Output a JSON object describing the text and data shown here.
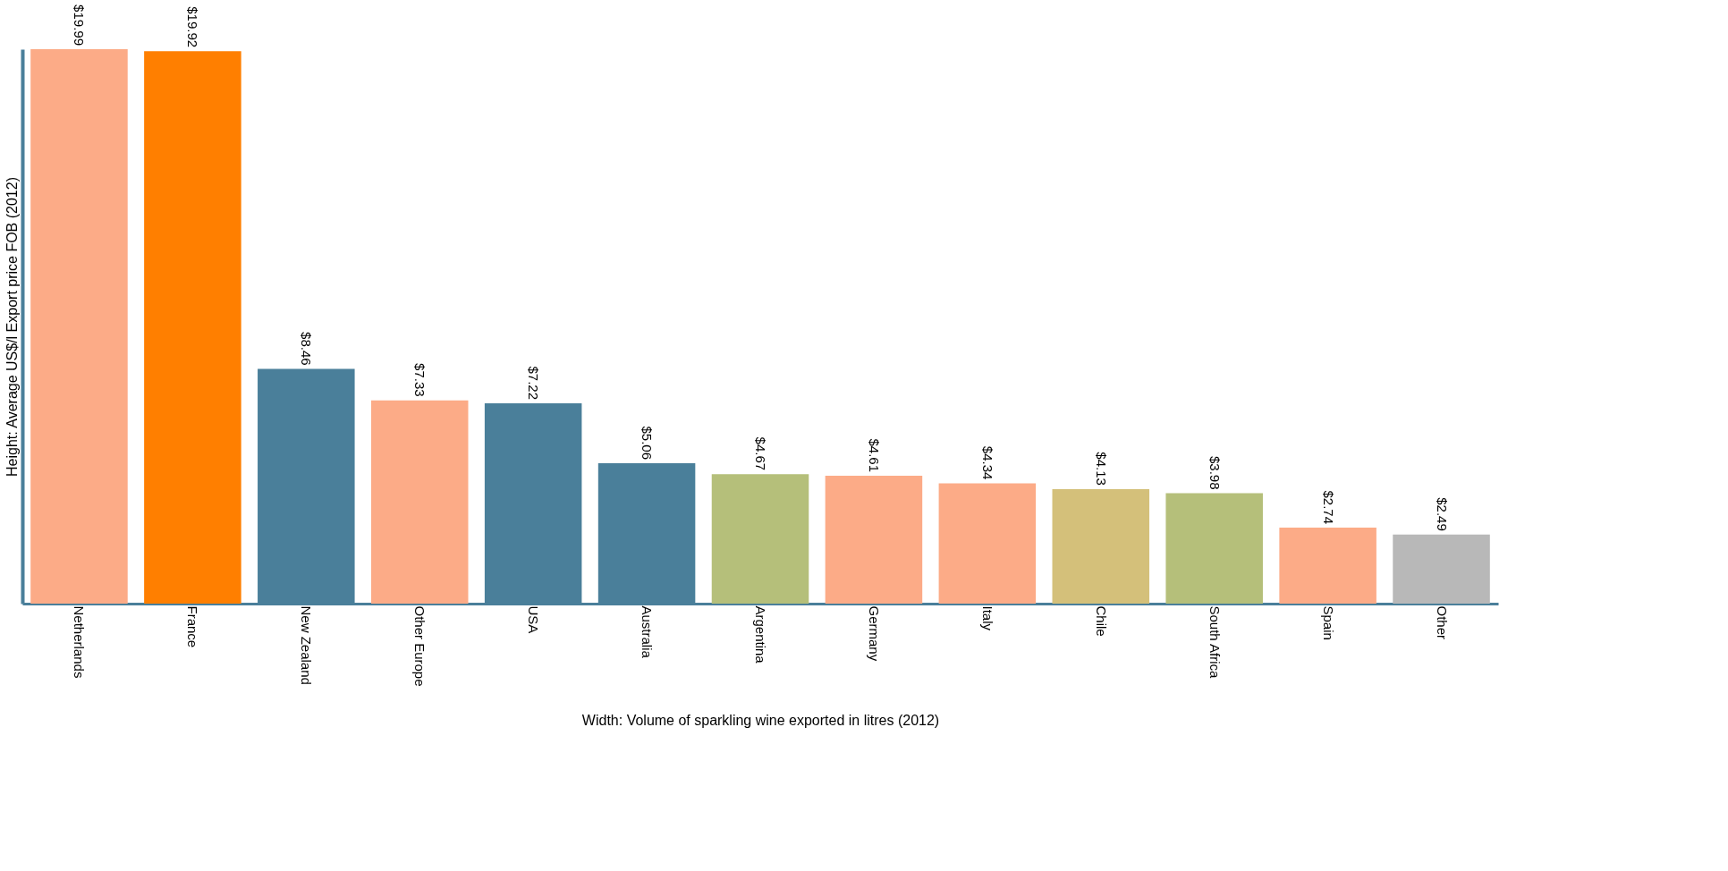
{
  "chart_data": {
    "type": "bar",
    "xlabel": "Width: Volume of sparkling wine exported in litres (2012)",
    "ylabel": "Height: Average US$/l Export price FOB (2012)",
    "categories": [
      "Netherlands",
      "France",
      "New Zealand",
      "Other Europe",
      "USA",
      "Australia",
      "Argentina",
      "Germany",
      "Italy",
      "Chile",
      "South Africa",
      "Spain",
      "Other"
    ],
    "values": [
      19.99,
      19.92,
      8.46,
      7.33,
      7.22,
      5.06,
      4.67,
      4.61,
      4.34,
      4.13,
      3.98,
      2.74,
      2.49
    ],
    "value_labels": [
      "$19.99",
      "$19.92",
      "$8.46",
      "$7.33",
      "$7.22",
      "$5.06",
      "$4.67",
      "$4.61",
      "$4.34",
      "$4.13",
      "$3.98",
      "$2.74",
      "$2.49"
    ],
    "colors": [
      "#fcab87",
      "#ff7f00",
      "#4a7f9a",
      "#fcab87",
      "#4a7f9a",
      "#4a7f9a",
      "#b5bf7a",
      "#fcab87",
      "#fcab87",
      "#d4c07a",
      "#b5bf7a",
      "#fcab87",
      "#b8b8b8"
    ],
    "tick_labels": "x",
    "grid": false
  }
}
